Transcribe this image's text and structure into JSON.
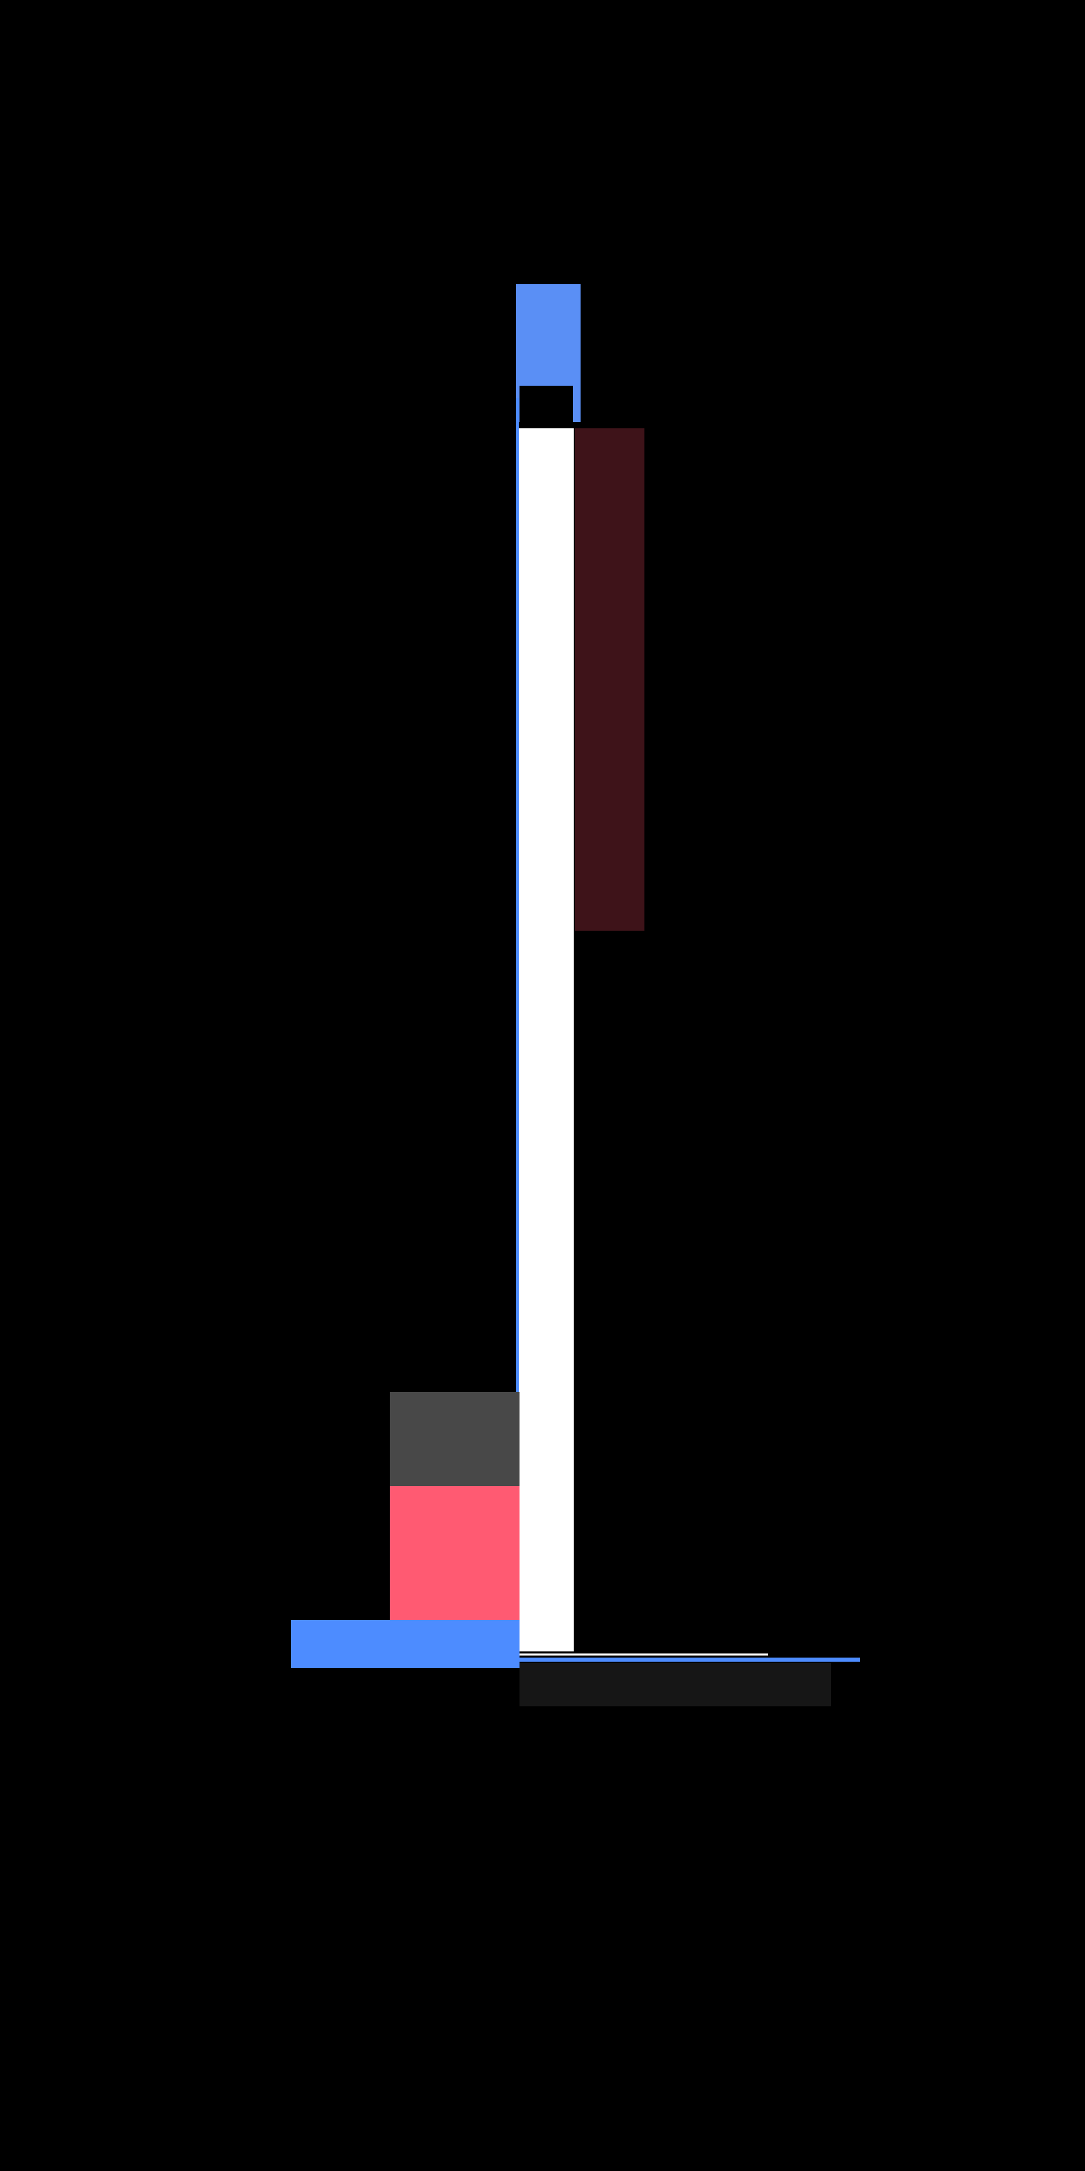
{
  "colors": {
    "background": "#000000",
    "tab_top": "#5a8ff5",
    "column_accent": "#4d8cff",
    "column": "#ffffff",
    "side_panel": "#3e1319",
    "block_gray": "#484848",
    "block_pink": "#ff5a72",
    "block_blue": "#4d8cff",
    "base_white_line": "#ffffff",
    "base_blue_line": "#4d8cff",
    "base_dark_bar": "#161616"
  }
}
